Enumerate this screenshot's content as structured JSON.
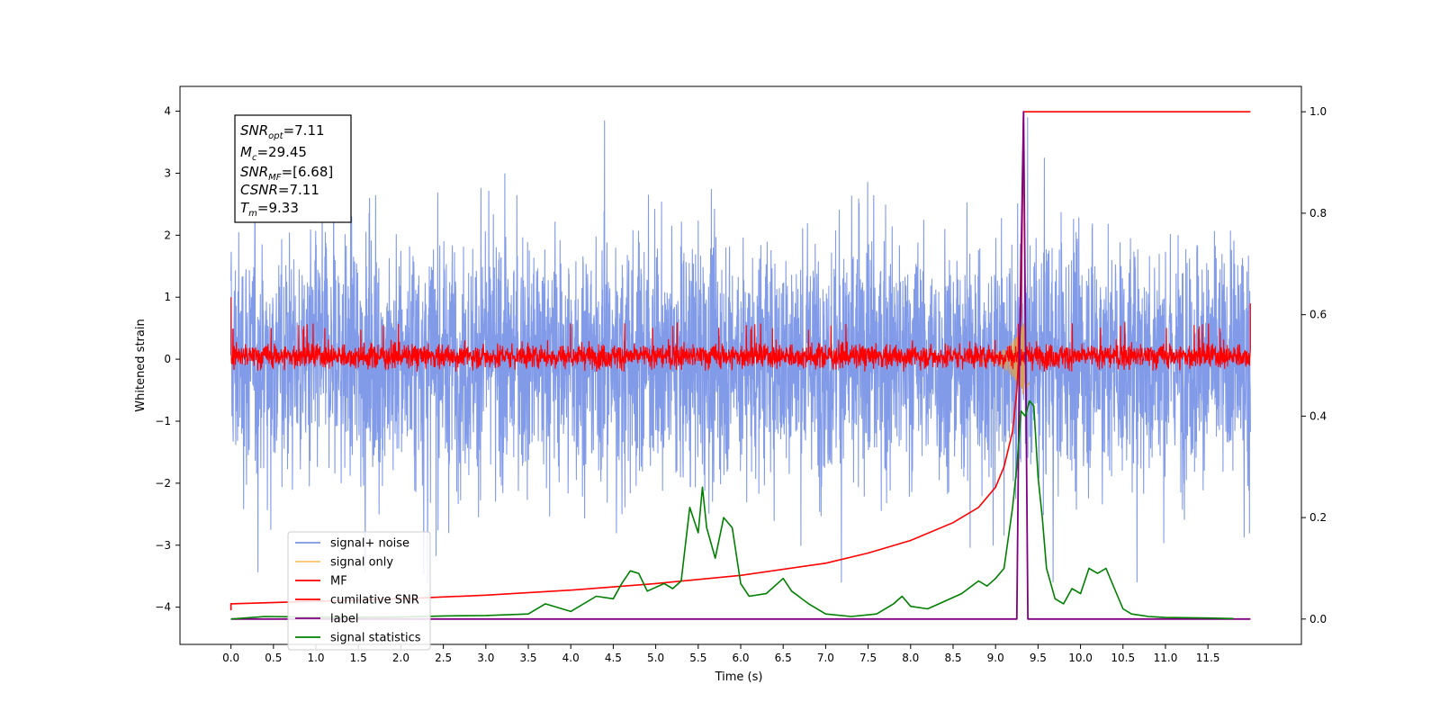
{
  "chart_data": {
    "type": "line",
    "xlabel": "Time (s)",
    "ylabel": "Whitened strain",
    "xlim": [
      -0.6,
      12.6
    ],
    "ylim": [
      -4.6,
      4.4
    ],
    "y2lim": [
      -0.05,
      1.05
    ],
    "x_ticks": [
      "0.0",
      "0.5",
      "1.0",
      "1.5",
      "2.0",
      "2.5",
      "3.0",
      "3.5",
      "4.0",
      "4.5",
      "5.0",
      "5.5",
      "6.0",
      "6.5",
      "7.0",
      "7.5",
      "8.0",
      "8.5",
      "9.0",
      "9.5",
      "10.0",
      "10.5",
      "11.0",
      "11.5"
    ],
    "y_ticks": [
      "4",
      "3",
      "2",
      "1",
      "0",
      "−1",
      "−2",
      "−3",
      "−4"
    ],
    "y2_ticks": [
      "1.0",
      "0.8",
      "0.6",
      "0.4",
      "0.2",
      "0.0"
    ],
    "annotation_box": {
      "snr_opt": {
        "sym": "SNR",
        "sub": "opt",
        "val": "=7.11"
      },
      "mc": {
        "sym": "M",
        "sub": "c",
        "val": "=29.45"
      },
      "snr_mf": {
        "sym": "SNR",
        "sub": "MF",
        "val": "=[6.68]"
      },
      "csnr": {
        "sym": "CSNR",
        "val": "=7.11"
      },
      "tm": {
        "sym": "T",
        "sub": "m",
        "val": "=9.33"
      }
    },
    "legend": {
      "placement": "lower-left",
      "entries": [
        {
          "label": "signal+ noise",
          "color": "#7b96e8"
        },
        {
          "label": "signal only",
          "color": "#f5c56e"
        },
        {
          "label": "MF",
          "color": "#ff0000"
        },
        {
          "label": "cumilative SNR",
          "color": "#ff0000"
        },
        {
          "label": "label",
          "color": "#800080"
        },
        {
          "label": "signal statistics",
          "color": "#008000"
        }
      ]
    },
    "series": [
      {
        "name": "signal+ noise",
        "axis": "left",
        "description_range": [
          -3.0,
          3.6
        ],
        "x_range": [
          0.0,
          12.0
        ]
      },
      {
        "name": "signal only",
        "axis": "left",
        "peak_x": 9.33,
        "peak_amplitude": 0.6
      },
      {
        "name": "MF",
        "axis": "left",
        "x_range": [
          0.0,
          12.0
        ],
        "band": [
          -0.2,
          0.3
        ],
        "peaks": [
          0.6,
          0.95
        ]
      },
      {
        "name": "cumilative SNR",
        "axis": "right",
        "x": [
          0.0,
          1.0,
          2.0,
          3.0,
          4.0,
          5.0,
          6.0,
          7.0,
          7.5,
          8.0,
          8.5,
          8.8,
          9.0,
          9.1,
          9.2,
          9.25,
          9.3,
          9.33,
          9.4,
          12.0
        ],
        "values": [
          0.03,
          0.035,
          0.04,
          0.047,
          0.057,
          0.07,
          0.086,
          0.11,
          0.13,
          0.155,
          0.19,
          0.22,
          0.26,
          0.3,
          0.37,
          0.45,
          0.6,
          1.0,
          1.0,
          1.0
        ]
      },
      {
        "name": "label",
        "axis": "right",
        "x": [
          0.0,
          9.25,
          9.28,
          9.33,
          9.38,
          12.0
        ],
        "values": [
          0.0,
          0.0,
          0.5,
          1.0,
          0.0,
          0.0
        ]
      },
      {
        "name": "signal statistics",
        "axis": "right",
        "x": [
          0.0,
          0.4,
          1.0,
          1.5,
          2.0,
          2.5,
          3.0,
          3.5,
          3.7,
          4.0,
          4.3,
          4.5,
          4.6,
          4.7,
          4.8,
          4.9,
          5.1,
          5.2,
          5.3,
          5.4,
          5.5,
          5.55,
          5.6,
          5.7,
          5.8,
          5.9,
          6.0,
          6.1,
          6.3,
          6.5,
          6.6,
          6.8,
          7.0,
          7.3,
          7.6,
          7.8,
          7.9,
          8.0,
          8.2,
          8.4,
          8.6,
          8.8,
          8.9,
          9.0,
          9.1,
          9.2,
          9.25,
          9.3,
          9.35,
          9.4,
          9.45,
          9.5,
          9.55,
          9.6,
          9.7,
          9.8,
          9.9,
          10.0,
          10.1,
          10.2,
          10.3,
          10.4,
          10.5,
          10.6,
          10.8,
          11.0,
          11.5,
          11.8
        ],
        "values": [
          0.0,
          0.005,
          0.004,
          0.003,
          0.004,
          0.006,
          0.007,
          0.01,
          0.03,
          0.015,
          0.045,
          0.04,
          0.07,
          0.095,
          0.09,
          0.055,
          0.07,
          0.06,
          0.075,
          0.22,
          0.17,
          0.26,
          0.18,
          0.12,
          0.2,
          0.18,
          0.07,
          0.045,
          0.05,
          0.08,
          0.055,
          0.03,
          0.01,
          0.005,
          0.01,
          0.03,
          0.045,
          0.025,
          0.02,
          0.035,
          0.05,
          0.075,
          0.065,
          0.08,
          0.1,
          0.22,
          0.3,
          0.41,
          0.4,
          0.43,
          0.42,
          0.28,
          0.2,
          0.1,
          0.04,
          0.03,
          0.06,
          0.05,
          0.1,
          0.09,
          0.1,
          0.06,
          0.02,
          0.01,
          0.005,
          0.003,
          0.002,
          0.001
        ]
      }
    ],
    "grid": false
  }
}
